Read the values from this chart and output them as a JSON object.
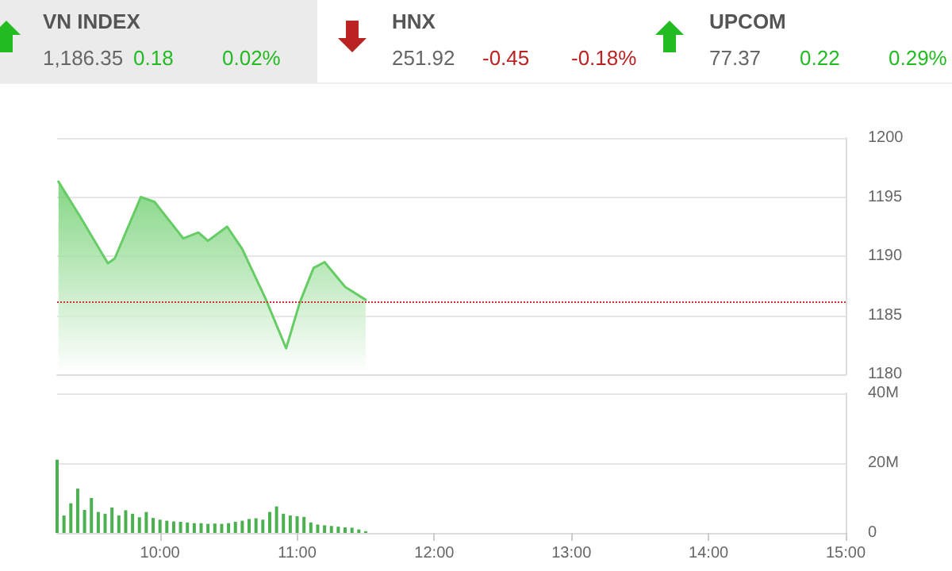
{
  "chart_data": [
    {
      "type": "other",
      "annotations": [
        "VN INDEX",
        "1,186.35",
        "0.18",
        "0.02%",
        "HNX",
        "251.92",
        "-0.45",
        "-0.18%",
        "UPCOM",
        "77.37",
        "0.22",
        "0.29%"
      ],
      "colors": [
        "#555555",
        "#666666",
        "#22bb22",
        "#22bb22",
        "#555555",
        "#666666",
        "#bb2222",
        "#bb2222",
        "#555555",
        "#666666",
        "#22bb22",
        "#22bb22"
      ]
    },
    {
      "type": "area",
      "tick_labels": "y",
      "grid": "y",
      "marker": "none",
      "xlim": [
        9.25,
        15
      ],
      "ylim": [
        1180,
        1200
      ],
      "yticks": [
        1180,
        1185,
        1190,
        1195,
        1200
      ],
      "series": [
        {
          "color": "#66cc66",
          "x": [
            9.26,
            9.42,
            9.62,
            9.67,
            9.86,
            9.96,
            10.17,
            10.28,
            10.35,
            10.49,
            10.6,
            10.77,
            10.92,
            11.02,
            11.12,
            11.2,
            11.35,
            11.5
          ],
          "values": [
            1196.3,
            1193.3,
            1189.4,
            1189.8,
            1195.0,
            1194.6,
            1191.5,
            1192.0,
            1191.3,
            1192.5,
            1190.6,
            1186.4,
            1182.2,
            1186.1,
            1189.0,
            1189.5,
            1187.4,
            1186.3
          ]
        }
      ],
      "ref_lines": [
        {
          "axis": "y",
          "value": 1186.2,
          "color": "#cc3333",
          "line_style": "dotted"
        }
      ]
    },
    {
      "type": "bar",
      "grid": "y",
      "xlim": [
        9.25,
        15
      ],
      "ylim": [
        0,
        40
      ],
      "xticks": [
        {
          "value": 10,
          "label": "10:00"
        },
        {
          "value": 11,
          "label": "11:00"
        },
        {
          "value": 12,
          "label": "12:00"
        },
        {
          "value": 13,
          "label": "13:00"
        },
        {
          "value": 14,
          "label": "14:00"
        },
        {
          "value": 15,
          "label": "15:00"
        }
      ],
      "yticks": [
        {
          "value": 0,
          "label": "0"
        },
        {
          "value": 20,
          "label": "20M"
        },
        {
          "value": 40,
          "label": "40M"
        }
      ],
      "x": [
        9.25,
        9.3,
        9.35,
        9.4,
        9.45,
        9.5,
        9.55,
        9.6,
        9.65,
        9.7,
        9.75,
        9.8,
        9.85,
        9.9,
        9.95,
        10.0,
        10.05,
        10.1,
        10.15,
        10.2,
        10.25,
        10.3,
        10.35,
        10.4,
        10.45,
        10.5,
        10.55,
        10.6,
        10.65,
        10.7,
        10.75,
        10.8,
        10.85,
        10.9,
        10.95,
        11.0,
        11.05,
        11.1,
        11.15,
        11.2,
        11.25,
        11.3,
        11.35,
        11.4,
        11.45,
        11.5
      ],
      "values": [
        21,
        5,
        8.5,
        12.7,
        6.6,
        10,
        6,
        5.5,
        7.3,
        5,
        6.5,
        5.5,
        4.5,
        6,
        4.3,
        3.8,
        3.5,
        3.3,
        3.2,
        3,
        2.8,
        2.8,
        2.6,
        2.7,
        2.6,
        2.8,
        3.2,
        3.5,
        4,
        4.2,
        3.8,
        6,
        7.6,
        5.5,
        5,
        4.8,
        4.6,
        3,
        2.4,
        2.2,
        2,
        1.8,
        1.6,
        1.5,
        1,
        0.5
      ],
      "color": "#4caf50"
    }
  ]
}
